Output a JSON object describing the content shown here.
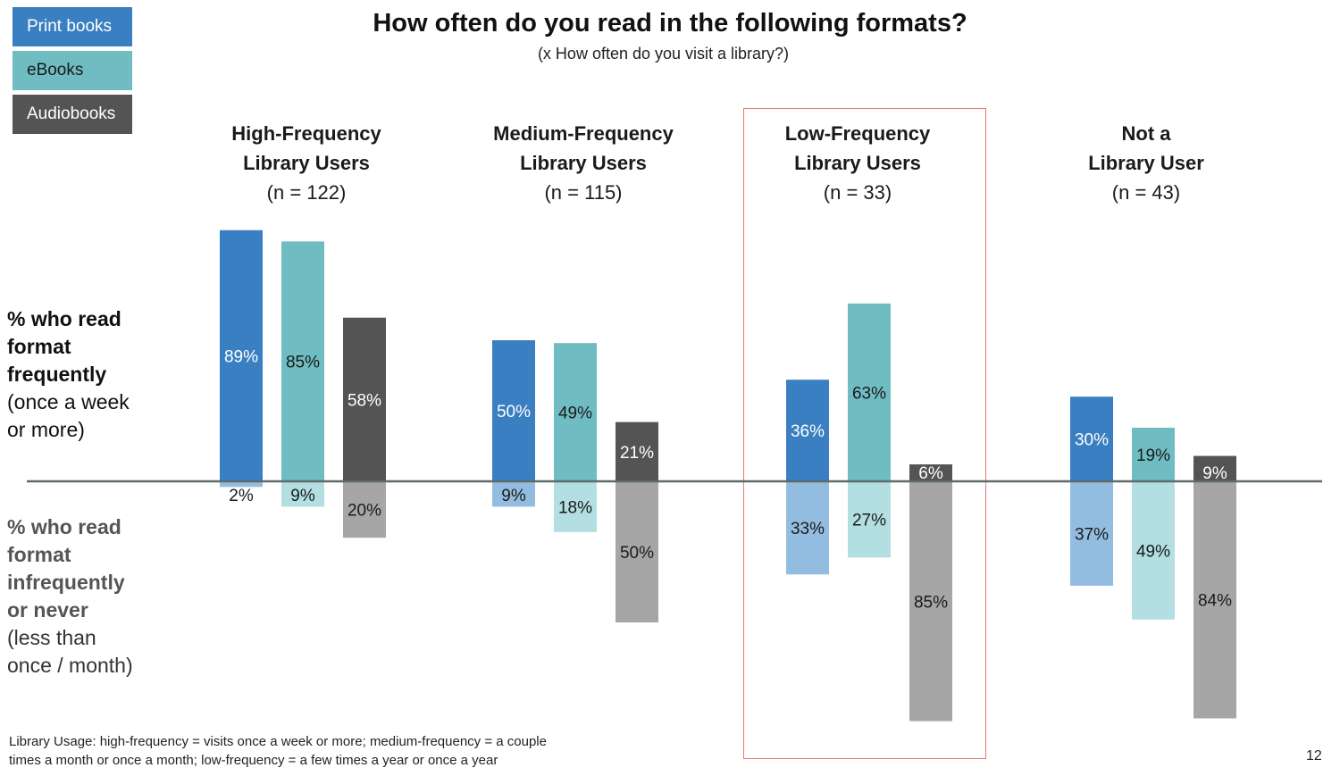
{
  "title": "How often do you read in the following formats?",
  "subtitle": "(x How often do you visit a library?)",
  "legend": [
    {
      "label": "Print books",
      "color": "#3a7fc1"
    },
    {
      "label": "eBooks",
      "color": "#6fbdc3"
    },
    {
      "label": "Audiobooks",
      "color": "#545454"
    }
  ],
  "side_labels": {
    "frequent_bold_1": "% who read",
    "frequent_bold_2": "format",
    "frequent_bold_3": "frequently",
    "frequent_plain_1": "(once a week",
    "frequent_plain_2": "or more)",
    "infrequent_bold_1": "% who read",
    "infrequent_bold_2": "format",
    "infrequent_bold_3": "infrequently",
    "infrequent_bold_4": "or never",
    "infrequent_plain_1": "(less than",
    "infrequent_plain_2": "once / month)"
  },
  "groups": [
    {
      "line1": "High-Frequency",
      "line2": "Library Users",
      "n": "(n = 122)"
    },
    {
      "line1": "Medium-Frequency",
      "line2": "Library Users",
      "n": "(n = 115)"
    },
    {
      "line1": "Low-Frequency",
      "line2": "Library Users",
      "n": "(n = 33)"
    },
    {
      "line1": "Not a",
      "line2": "Library User",
      "n": "(n = 43)"
    }
  ],
  "footnote_line1": "Library Usage:  high-frequency  = visits once a week or more; medium-frequency = a couple",
  "footnote_line2": "times a month or once a month; low-frequency = a few times a year or once a year",
  "page_number": "12",
  "colors": {
    "print_frequent": "#3a7fc1",
    "ebooks_frequent": "#6fbdc3",
    "audio_frequent": "#545454",
    "print_infrequent": "#93bde0",
    "ebooks_infrequent": "#b3dfe2",
    "audio_infrequent": "#a6a6a6",
    "highlight": "#e47c74",
    "axis": "#5f6a6a"
  },
  "chart_data": {
    "type": "bar",
    "categories": [
      "High-Frequency Library Users",
      "Medium-Frequency Library Users",
      "Low-Frequency Library Users",
      "Not a Library User"
    ],
    "series": [
      {
        "name": "Print books",
        "frequent": [
          89,
          50,
          36,
          30
        ],
        "infrequent": [
          2,
          9,
          33,
          37
        ]
      },
      {
        "name": "eBooks",
        "frequent": [
          85,
          49,
          63,
          19
        ],
        "infrequent": [
          9,
          18,
          27,
          49
        ]
      },
      {
        "name": "Audiobooks",
        "frequent": [
          58,
          21,
          6,
          9
        ],
        "infrequent": [
          20,
          50,
          85,
          84
        ]
      }
    ],
    "labels": {
      "frequent": [
        [
          "89%",
          "85%",
          "58%"
        ],
        [
          "50%",
          "49%",
          "21%"
        ],
        [
          "36%",
          "63%",
          "6%"
        ],
        [
          "30%",
          "19%",
          "9%"
        ]
      ],
      "infrequent": [
        [
          "2%",
          "9%",
          "20%"
        ],
        [
          "9%",
          "18%",
          "50%"
        ],
        [
          "33%",
          "27%",
          "85%"
        ],
        [
          "37%",
          "49%",
          "84%"
        ]
      ]
    },
    "highlighted_group": "Low-Frequency Library Users"
  }
}
